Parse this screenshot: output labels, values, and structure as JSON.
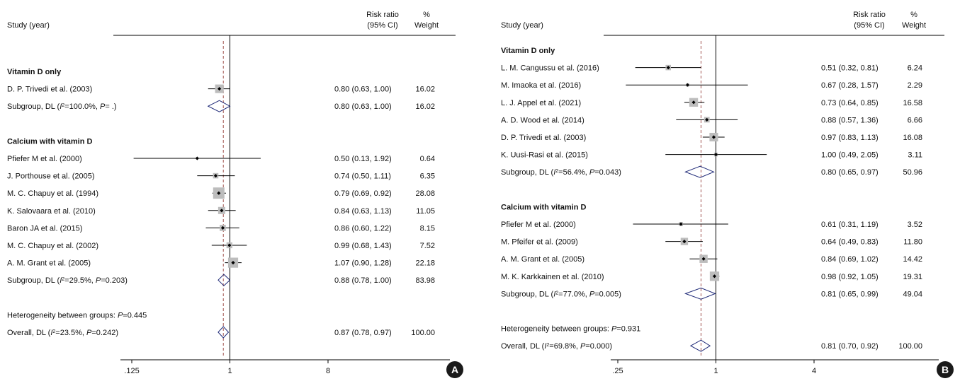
{
  "chart_data": [
    {
      "type": "forest",
      "panel_label": "A",
      "header": {
        "study": "Study (year)",
        "rr_line1": "Risk ratio",
        "rr_line2": "(95% CI)",
        "weight_line1": "%",
        "weight_line2": "Weight"
      },
      "x_scale": "log",
      "x_ticks": [
        {
          "value": 0.125,
          "label": ".125"
        },
        {
          "value": 1,
          "label": "1"
        },
        {
          "value": 8,
          "label": "8"
        }
      ],
      "xlim": [
        0.125,
        8
      ],
      "null_value": 1,
      "overall_rr": 0.87,
      "groups": [
        {
          "title": "Vitamin D only",
          "studies": [
            {
              "label": "D. P. Trivedi et al. (2003)",
              "rr": 0.8,
              "lo": 0.63,
              "hi": 1.0,
              "text": "0.80 (0.63, 1.00)",
              "weight": "16.02"
            }
          ],
          "subtotal": {
            "prefix": "Subgroup, DL (",
            "i2_symbol": "I",
            "i2_sup": "2",
            "i2_value": "=100.0%, ",
            "p_symbol": "P",
            "p_value": "= .)",
            "rr": 0.8,
            "lo": 0.63,
            "hi": 1.0,
            "text": "0.80 (0.63, 1.00)",
            "weight": "16.02"
          }
        },
        {
          "title": "Calcium with vitamin D",
          "studies": [
            {
              "label": "Pfiefer M et al. (2000)",
              "rr": 0.5,
              "lo": 0.13,
              "hi": 1.92,
              "text": "0.50 (0.13, 1.92)",
              "weight": "0.64"
            },
            {
              "label": "J. Porthouse et al. (2005)",
              "rr": 0.74,
              "lo": 0.5,
              "hi": 1.11,
              "text": "0.74 (0.50, 1.11)",
              "weight": "6.35"
            },
            {
              "label": "M. C. Chapuy et al. (1994)",
              "rr": 0.79,
              "lo": 0.69,
              "hi": 0.92,
              "text": "0.79 (0.69, 0.92)",
              "weight": "28.08"
            },
            {
              "label": "K. Salovaara et al. (2010)",
              "rr": 0.84,
              "lo": 0.63,
              "hi": 1.13,
              "text": "0.84 (0.63, 1.13)",
              "weight": "11.05"
            },
            {
              "label": "Baron JA et al. (2015)",
              "rr": 0.86,
              "lo": 0.6,
              "hi": 1.22,
              "text": "0.86 (0.60, 1.22)",
              "weight": "8.15"
            },
            {
              "label": "M. C. Chapuy et al. (2002)",
              "rr": 0.99,
              "lo": 0.68,
              "hi": 1.43,
              "text": "0.99 (0.68, 1.43)",
              "weight": "7.52"
            },
            {
              "label": "A. M. Grant et al. (2005)",
              "rr": 1.07,
              "lo": 0.9,
              "hi": 1.28,
              "text": "1.07 (0.90, 1.28)",
              "weight": "22.18"
            }
          ],
          "subtotal": {
            "prefix": "Subgroup, DL (",
            "i2_symbol": "I",
            "i2_sup": "2",
            "i2_value": "=29.5%, ",
            "p_symbol": "P",
            "p_value": "=0.203)",
            "rr": 0.88,
            "lo": 0.78,
            "hi": 1.0,
            "text": "0.88 (0.78, 1.00)",
            "weight": "83.98"
          }
        }
      ],
      "heterogeneity": {
        "prefix": "Heterogeneity between groups: ",
        "p_symbol": "P",
        "p_value": "=0.445"
      },
      "overall": {
        "prefix": "Overall, DL (",
        "i2_symbol": "I",
        "i2_sup": "2",
        "i2_value": "=23.5%, ",
        "p_symbol": "P",
        "p_value": "=0.242)",
        "rr": 0.87,
        "lo": 0.78,
        "hi": 0.97,
        "text": "0.87 (0.78, 0.97)",
        "weight": "100.00"
      }
    },
    {
      "type": "forest",
      "panel_label": "B",
      "header": {
        "study": "Study (year)",
        "rr_line1": "Risk ratio",
        "rr_line2": "(95% CI)",
        "weight_line1": "%",
        "weight_line2": "Weight"
      },
      "x_scale": "log",
      "x_ticks": [
        {
          "value": 0.25,
          "label": ".25"
        },
        {
          "value": 1,
          "label": "1"
        },
        {
          "value": 4,
          "label": "4"
        }
      ],
      "xlim": [
        0.25,
        4
      ],
      "null_value": 1,
      "overall_rr": 0.81,
      "groups": [
        {
          "title": "Vitamin D only",
          "studies": [
            {
              "label": "L. M. Cangussu et al. (2016)",
              "rr": 0.51,
              "lo": 0.32,
              "hi": 0.81,
              "text": "0.51 (0.32, 0.81)",
              "weight": "6.24"
            },
            {
              "label": "M. Imaoka et al. (2016)",
              "rr": 0.67,
              "lo": 0.28,
              "hi": 1.57,
              "text": "0.67 (0.28, 1.57)",
              "weight": "2.29"
            },
            {
              "label": "L. J. Appel et al. (2021)",
              "rr": 0.73,
              "lo": 0.64,
              "hi": 0.85,
              "text": "0.73 (0.64, 0.85)",
              "weight": "16.58"
            },
            {
              "label": "A. D. Wood et al. (2014)",
              "rr": 0.88,
              "lo": 0.57,
              "hi": 1.36,
              "text": "0.88 (0.57, 1.36)",
              "weight": "6.66"
            },
            {
              "label": "D. P. Trivedi et al. (2003)",
              "rr": 0.97,
              "lo": 0.83,
              "hi": 1.13,
              "text": "0.97 (0.83, 1.13)",
              "weight": "16.08"
            },
            {
              "label": "K. Uusi-Rasi et al. (2015)",
              "rr": 1.0,
              "lo": 0.49,
              "hi": 2.05,
              "text": "1.00 (0.49, 2.05)",
              "weight": "3.11"
            }
          ],
          "subtotal": {
            "prefix": "Subgroup, DL (",
            "i2_symbol": "I",
            "i2_sup": "2",
            "i2_value": "=56.4%, ",
            "p_symbol": "P",
            "p_value": "=0.043)",
            "rr": 0.8,
            "lo": 0.65,
            "hi": 0.97,
            "text": "0.80 (0.65, 0.97)",
            "weight": "50.96"
          }
        },
        {
          "title": "Calcium with vitamin D",
          "studies": [
            {
              "label": "Pfiefer M et al. (2000)",
              "rr": 0.61,
              "lo": 0.31,
              "hi": 1.19,
              "text": "0.61 (0.31, 1.19)",
              "weight": "3.52"
            },
            {
              "label": "M. Pfeifer et al. (2009)",
              "rr": 0.64,
              "lo": 0.49,
              "hi": 0.83,
              "text": "0.64 (0.49, 0.83)",
              "weight": "11.80"
            },
            {
              "label": "A. M. Grant et al. (2005)",
              "rr": 0.84,
              "lo": 0.69,
              "hi": 1.02,
              "text": "0.84 (0.69, 1.02)",
              "weight": "14.42"
            },
            {
              "label": "M. K. Karkkainen et al. (2010)",
              "rr": 0.98,
              "lo": 0.92,
              "hi": 1.05,
              "text": "0.98 (0.92, 1.05)",
              "weight": "19.31"
            }
          ],
          "subtotal": {
            "prefix": "Subgroup, DL (",
            "i2_symbol": "I",
            "i2_sup": "2",
            "i2_value": "=77.0%, ",
            "p_symbol": "P",
            "p_value": "=0.005)",
            "rr": 0.81,
            "lo": 0.65,
            "hi": 0.99,
            "text": "0.81 (0.65, 0.99)",
            "weight": "49.04"
          }
        }
      ],
      "heterogeneity": {
        "prefix": "Heterogeneity between groups: ",
        "p_symbol": "P",
        "p_value": "=0.931"
      },
      "overall": {
        "prefix": "Overall, DL (",
        "i2_symbol": "I",
        "i2_sup": "2",
        "i2_value": "=69.8%, ",
        "p_symbol": "P",
        "p_value": "=0.000)",
        "rr": 0.81,
        "lo": 0.7,
        "hi": 0.92,
        "text": "0.81 (0.70, 0.92)",
        "weight": "100.00"
      }
    }
  ]
}
